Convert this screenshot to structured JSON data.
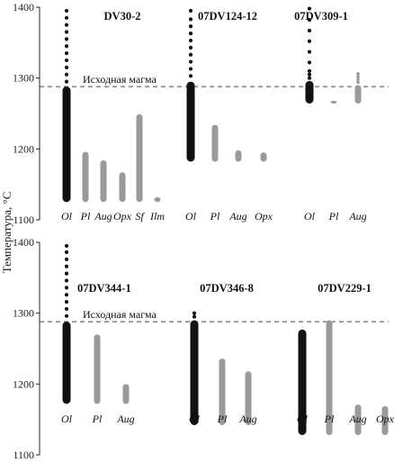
{
  "chart_data": {
    "type": "range-bar",
    "ylabel": "Температура, °C",
    "ylim": [
      1100,
      1400
    ],
    "yticks": [
      1100,
      1200,
      1300,
      1400
    ],
    "magma_label": "Исходная магма",
    "magma_temperature": 1288,
    "colors": {
      "Ol": "#111111",
      "other": "#9a9a9a"
    },
    "panels": [
      {
        "row": 0,
        "samples": [
          {
            "title": "DV30-2",
            "bars": [
              {
                "mineral": "Ol",
                "low": 1125,
                "high": 1288,
                "dots": [
                  1295,
                  1305,
                  1315,
                  1325,
                  1335,
                  1345,
                  1355,
                  1365,
                  1375,
                  1385,
                  1395
                ]
              },
              {
                "mineral": "Pl",
                "low": 1125,
                "high": 1196
              },
              {
                "mineral": "Aug",
                "low": 1125,
                "high": 1184
              },
              {
                "mineral": "Opx",
                "low": 1125,
                "high": 1167
              },
              {
                "mineral": "Sf",
                "low": 1125,
                "high": 1249
              },
              {
                "mineral": "Ilm",
                "low": 1125,
                "high": 1132
              }
            ]
          },
          {
            "title": "07DV124-12",
            "bars": [
              {
                "mineral": "Ol",
                "low": 1182,
                "high": 1295,
                "dots": [
                  1303,
                  1313,
                  1323,
                  1333,
                  1343,
                  1353,
                  1363,
                  1373,
                  1383,
                  1395
                ]
              },
              {
                "mineral": "Pl",
                "low": 1182,
                "high": 1234
              },
              {
                "mineral": "Aug",
                "low": 1182,
                "high": 1198
              },
              {
                "mineral": "Opx",
                "low": 1182,
                "high": 1195
              }
            ]
          },
          {
            "title": "07DV309-1",
            "bars": [
              {
                "mineral": "Ol",
                "low": 1264,
                "high": 1296,
                "dots": [
                  1300,
                  1305,
                  1310,
                  1322,
                  1337,
                  1352,
                  1367,
                  1382,
                  1398
                ]
              },
              {
                "mineral": "Pl",
                "low": 1264,
                "high": 1268
              },
              {
                "mineral": "Aug",
                "low": 1264,
                "high": 1290,
                "dots": [
                  1294,
                  1298,
                  1302,
                  1306
                ]
              }
            ]
          }
        ]
      },
      {
        "row": 1,
        "samples": [
          {
            "title": "07DV344-1",
            "bars": [
              {
                "mineral": "Ol",
                "low": 1172,
                "high": 1288,
                "dots": [
                  1296,
                  1306,
                  1316,
                  1326,
                  1336,
                  1346,
                  1356,
                  1366,
                  1376,
                  1386,
                  1395
                ]
              },
              {
                "mineral": "Pl",
                "low": 1172,
                "high": 1270
              },
              {
                "mineral": "Aug",
                "low": 1172,
                "high": 1200
              }
            ]
          },
          {
            "title": "07DV346-8",
            "bars": [
              {
                "mineral": "Ol",
                "low": 1142,
                "high": 1290,
                "dots": [
                  1295,
                  1300
                ]
              },
              {
                "mineral": "Pl",
                "low": 1142,
                "high": 1236
              },
              {
                "mineral": "Aug",
                "low": 1142,
                "high": 1218
              }
            ]
          },
          {
            "title": "07DV229-1",
            "bars": [
              {
                "mineral": "Ol",
                "low": 1128,
                "high": 1277
              },
              {
                "mineral": "Pl",
                "low": 1128,
                "high": 1290
              },
              {
                "mineral": "Aug",
                "low": 1128,
                "high": 1171
              },
              {
                "mineral": "Opx",
                "low": 1128,
                "high": 1169
              }
            ]
          }
        ]
      }
    ]
  }
}
